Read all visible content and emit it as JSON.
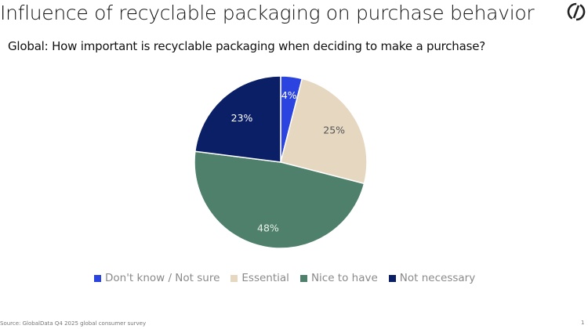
{
  "header": {
    "title": "Influence of recyclable packaging on purchase behavior",
    "subtitle": "Global: How important is recyclable packaging when deciding to make a purchase?",
    "logo_icon": "globaldata-logo-icon"
  },
  "chart_data": {
    "type": "pie",
    "title": "Influence of recyclable packaging on purchase behavior",
    "subtitle": "Global: How important is recyclable packaging when deciding to make a purchase?",
    "categories": [
      "Don't know / Not sure",
      "Essential",
      "Nice to have",
      "Not necessary"
    ],
    "values": [
      4,
      25,
      48,
      23
    ],
    "labels": [
      "4%",
      "25%",
      "48%",
      "23%"
    ],
    "colors": [
      "#2b44e0",
      "#e6d7c1",
      "#4e806c",
      "#0b1f66"
    ],
    "start_angle": "12 o'clock, clockwise",
    "legend_position": "bottom"
  },
  "legend": {
    "items": [
      {
        "label": "Don't know / Not sure",
        "color": "#2b44e0"
      },
      {
        "label": "Essential",
        "color": "#e6d7c1"
      },
      {
        "label": "Nice to have",
        "color": "#4e806c"
      },
      {
        "label": "Not necessary",
        "color": "#0b1f66"
      }
    ]
  },
  "footer": {
    "source": "Source: GlobalData Q4 2025 global consumer survey",
    "page_number": "1"
  }
}
